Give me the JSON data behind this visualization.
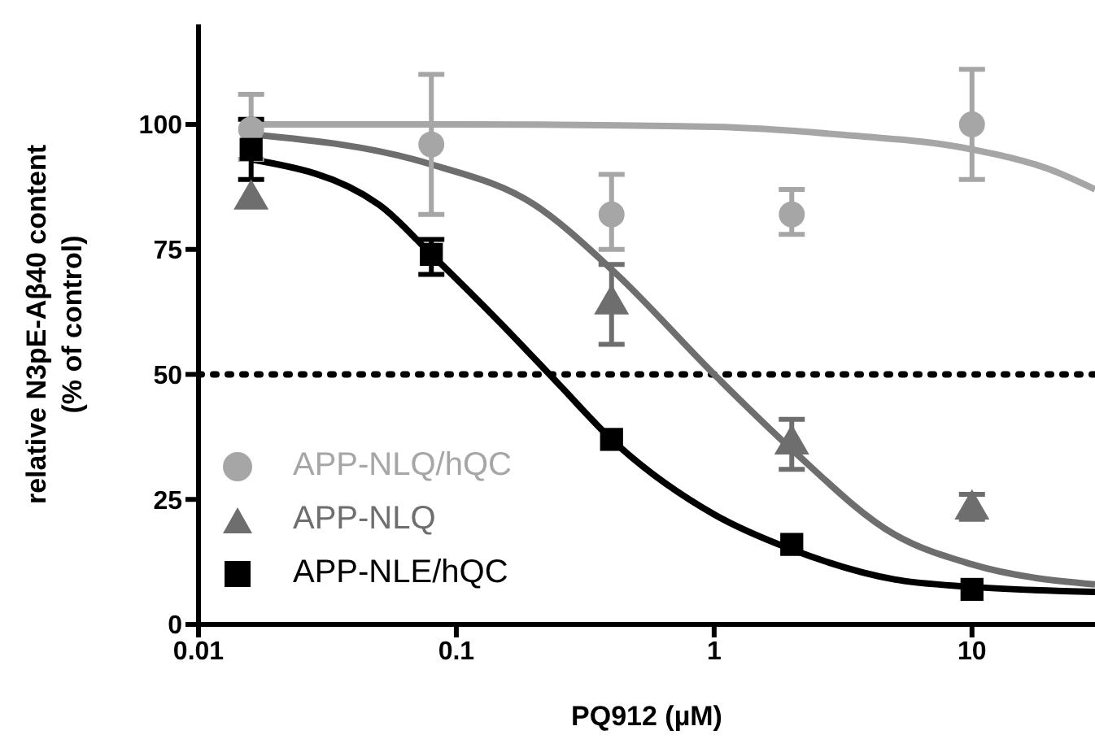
{
  "chart_data": {
    "type": "scatter",
    "xlabel": "PQ912 (µM)",
    "ylabel": "relative N3pE-Aβ40 content\n(% of control)",
    "log": "x",
    "xlim": [
      0.01,
      30
    ],
    "xticks": [
      0.01,
      0.1,
      1,
      10
    ],
    "ylim": [
      0,
      120
    ],
    "yticks": [
      0,
      25,
      50,
      75,
      100
    ],
    "grid": false,
    "legend": "bottom left",
    "ref_lines": [
      {
        "axis": "y",
        "value": 50,
        "color": "#000000",
        "line_style": "dotted"
      }
    ],
    "series": [
      {
        "name": "APP-NLQ/hQC",
        "color": "#a6a6a6",
        "marker": "circle",
        "x": [
          0.016,
          0.08,
          0.4,
          2,
          10
        ],
        "values": [
          99,
          96,
          82,
          82,
          100
        ],
        "errors": [
          [
            93,
            106
          ],
          [
            82,
            110
          ],
          [
            75,
            90
          ],
          [
            78,
            87
          ],
          [
            89,
            111
          ]
        ]
      },
      {
        "name": "APP-NLQ",
        "color": "#6e6e6e",
        "marker": "triangle",
        "x": [
          0.016,
          0.4,
          2,
          10
        ],
        "values": [
          85,
          64,
          36,
          23
        ],
        "errors": [
          null,
          [
            56,
            72
          ],
          [
            31,
            41
          ],
          [
            21,
            26
          ]
        ]
      },
      {
        "name": "APP-NLE/hQC",
        "color": "#000000",
        "marker": "square",
        "x": [
          0.016,
          0.08,
          0.4,
          2,
          10
        ],
        "values": [
          95,
          74,
          37,
          16,
          7
        ],
        "errors": [
          [
            89,
            101
          ],
          [
            70,
            77
          ],
          null,
          null,
          null
        ]
      },
      {
        "type": "line",
        "color": "#a6a6a6",
        "marker": "none",
        "x": [
          0.016,
          0.1,
          1,
          3,
          10,
          20,
          30
        ],
        "values": [
          100,
          100,
          99.5,
          98,
          95,
          91,
          87
        ]
      },
      {
        "type": "line",
        "color": "#6e6e6e",
        "marker": "none",
        "x": [
          0.016,
          0.08,
          0.2,
          0.4,
          1,
          2,
          5,
          10,
          30
        ],
        "values": [
          98,
          92,
          84,
          71,
          50,
          35,
          18,
          12,
          8
        ]
      },
      {
        "type": "line",
        "color": "#000000",
        "marker": "none",
        "x": [
          0.016,
          0.05,
          0.08,
          0.15,
          0.25,
          0.4,
          1,
          2,
          5,
          10,
          30
        ],
        "values": [
          93,
          84,
          74,
          60,
          48,
          37,
          22,
          15,
          9,
          7.5,
          6.5
        ]
      }
    ]
  }
}
